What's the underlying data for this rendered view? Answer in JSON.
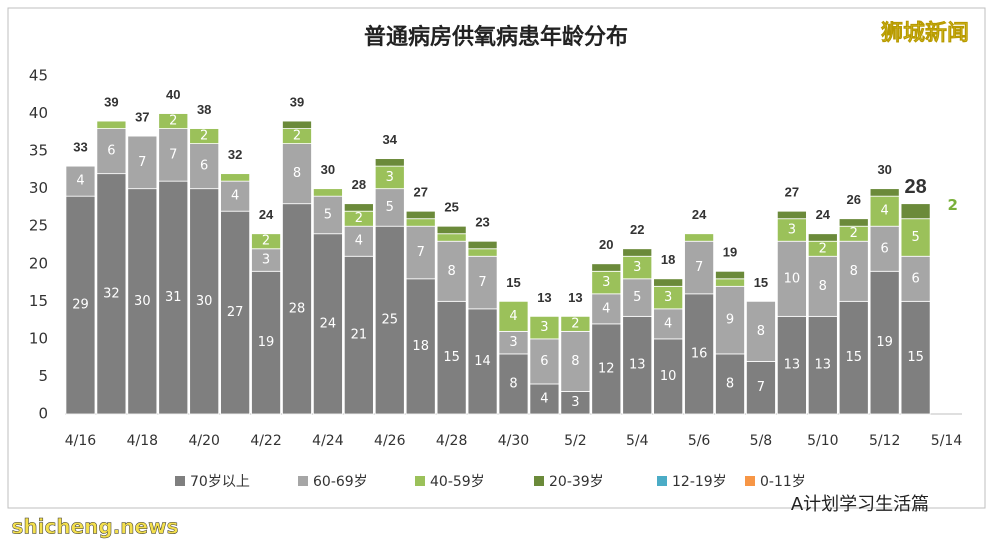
{
  "chart_data": {
    "type": "stacked_bar",
    "title": "普通病房供氧病患年龄分布",
    "categories": [
      "4/16",
      null,
      "4/18",
      null,
      "4/20",
      null,
      "4/22",
      null,
      "4/24",
      null,
      "4/26",
      null,
      "4/28",
      null,
      "4/30",
      null,
      "5/2",
      null,
      "5/4",
      null,
      "5/6",
      null,
      "5/8",
      null,
      "5/10",
      null,
      "5/12",
      null,
      "5/14"
    ],
    "series": [
      {
        "name": "70岁以上",
        "color": "#7f7f7f",
        "values": [
          29,
          32,
          30,
          31,
          30,
          27,
          19,
          28,
          24,
          21,
          25,
          18,
          15,
          14,
          8,
          4,
          3,
          12,
          13,
          10,
          16,
          8,
          7,
          13,
          13,
          15,
          19,
          15,
          null
        ]
      },
      {
        "name": "60-69岁",
        "color": "#a6a6a6",
        "values": [
          4,
          6,
          7,
          7,
          6,
          4,
          3,
          8,
          5,
          4,
          5,
          7,
          8,
          7,
          3,
          6,
          8,
          4,
          5,
          4,
          7,
          9,
          8,
          10,
          8,
          8,
          6,
          6,
          null
        ]
      },
      {
        "name": "40-59岁",
        "color": "#9bc15a",
        "values": [
          0,
          1,
          0,
          2,
          2,
          1,
          2,
          2,
          1,
          2,
          3,
          1,
          1,
          1,
          4,
          3,
          2,
          3,
          3,
          3,
          1,
          1,
          0,
          3,
          2,
          2,
          4,
          5,
          null
        ]
      },
      {
        "name": "20-39岁",
        "color": "#6b8a3a",
        "values": [
          0,
          0,
          0,
          0,
          0,
          0,
          0,
          1,
          0,
          1,
          1,
          1,
          1,
          1,
          0,
          0,
          0,
          1,
          1,
          1,
          0,
          1,
          0,
          1,
          1,
          1,
          1,
          2,
          null
        ]
      },
      {
        "name": "12-19岁",
        "color": "#4bacc6",
        "values": [
          null,
          null,
          null,
          null,
          null,
          null,
          null,
          null,
          null,
          null,
          null,
          null,
          null,
          null,
          null,
          null,
          null,
          null,
          null,
          null,
          null,
          null,
          null,
          null,
          null,
          null,
          null,
          null,
          null
        ]
      },
      {
        "name": "0-11岁",
        "color": "#f79646",
        "values": [
          null,
          null,
          null,
          null,
          null,
          null,
          null,
          null,
          null,
          null,
          null,
          null,
          null,
          null,
          null,
          null,
          null,
          null,
          null,
          null,
          null,
          null,
          null,
          null,
          null,
          null,
          null,
          null,
          null
        ]
      }
    ],
    "totals": [
      33,
      39,
      37,
      40,
      38,
      32,
      24,
      39,
      30,
      28,
      34,
      27,
      25,
      23,
      15,
      13,
      13,
      20,
      22,
      18,
      24,
      19,
      15,
      27,
      24,
      26,
      30,
      28,
      null
    ],
    "totals_color": "#c00000",
    "ylim": [
      0,
      45
    ],
    "yticks": [
      0,
      5,
      10,
      15,
      20,
      25,
      30,
      35,
      40,
      45
    ],
    "grid": false,
    "watermarks": [
      "狮城新闻",
      "A计划学习生活篇",
      "shicheng.news"
    ]
  }
}
